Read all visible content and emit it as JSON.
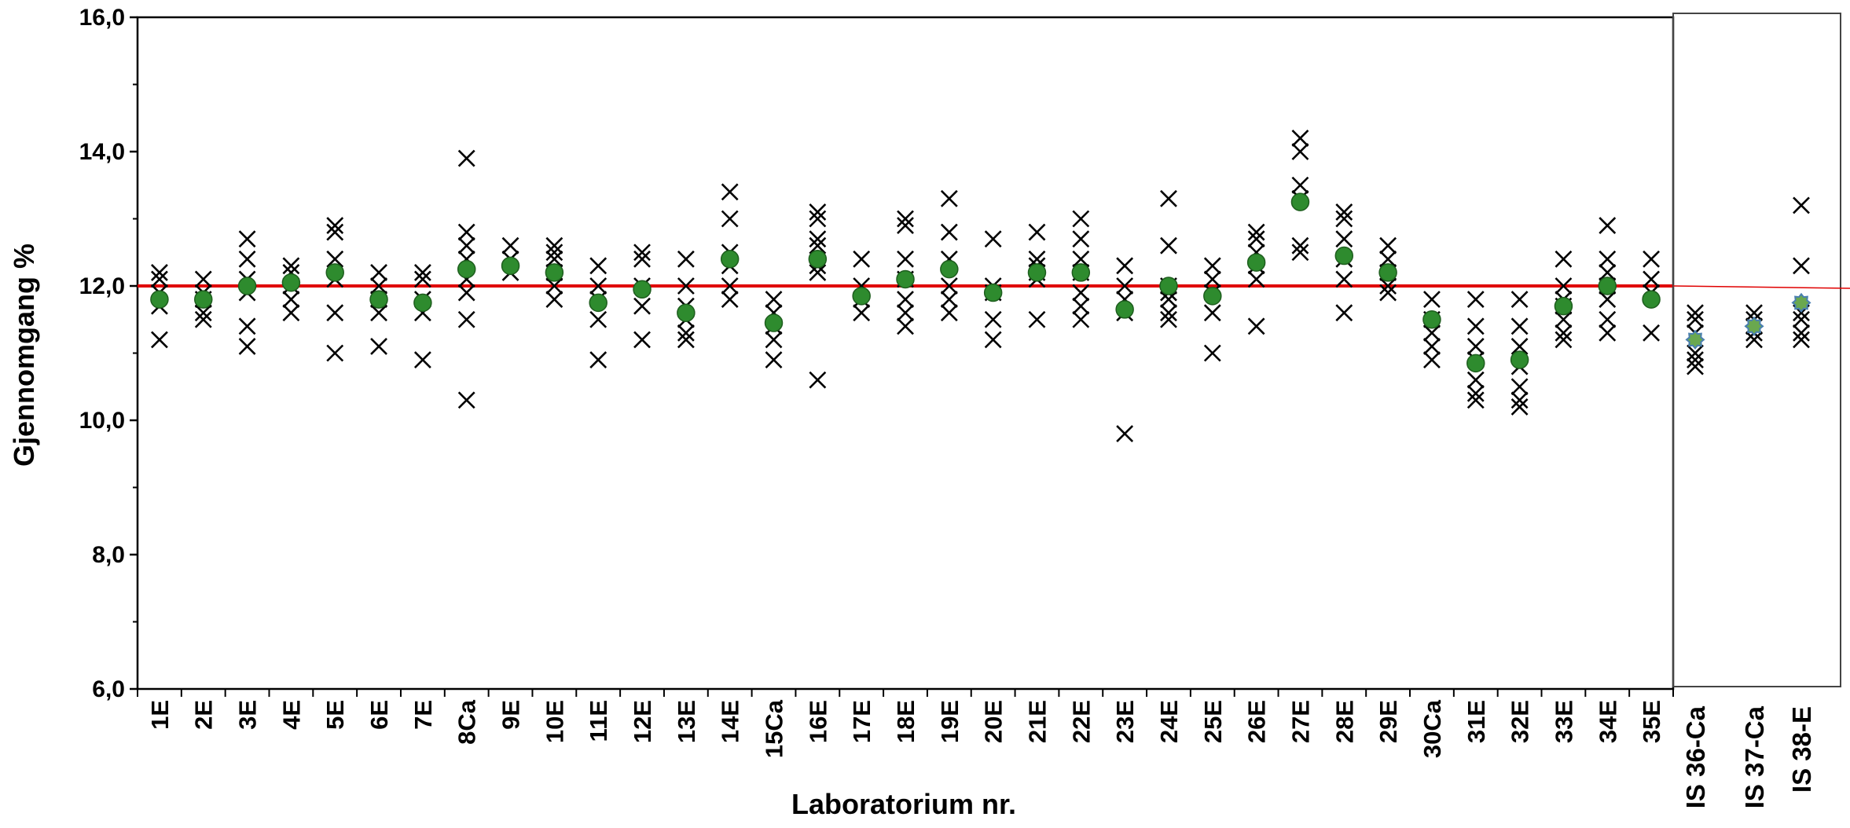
{
  "chart_data": [
    {
      "type": "scatter",
      "xlabel": "Laboratorium nr.",
      "ylabel": "Gjennomgang %",
      "ylim": [
        6,
        16
      ],
      "yticks": [
        "6,0",
        "8,0",
        "10,0",
        "12,0",
        "14,0",
        "16,0"
      ],
      "reference_value": 12.0,
      "reference_color": "#e00000",
      "marker_color": "#000000",
      "mean_color": "#2e8b2e",
      "categories": [
        "1E",
        "2E",
        "3E",
        "4E",
        "5E",
        "6E",
        "7E",
        "8Ca",
        "9E",
        "10E",
        "11E",
        "12E",
        "13E",
        "14E",
        "15Ca",
        "16E",
        "17E",
        "18E",
        "19E",
        "20E",
        "21E",
        "22E",
        "23E",
        "24E",
        "25E",
        "26E",
        "27E",
        "28E",
        "29E",
        "30Ca",
        "31E",
        "32E",
        "33E",
        "34E",
        "35E"
      ],
      "series": [
        {
          "values": [
            [
              12.2,
              12.1,
              11.9,
              11.7,
              11.2
            ],
            [
              12.1,
              11.9,
              11.8,
              11.6,
              11.5
            ],
            [
              12.7,
              12.4,
              12.1,
              11.9,
              11.4,
              11.1
            ],
            [
              12.3,
              12.2,
              12.0,
              11.8,
              11.6
            ],
            [
              12.9,
              12.8,
              12.4,
              12.1,
              11.6,
              11.0
            ],
            [
              12.2,
              12.0,
              11.8,
              11.6,
              11.1
            ],
            [
              12.2,
              12.1,
              11.8,
              11.6,
              10.9
            ],
            [
              13.9,
              12.8,
              12.6,
              12.4,
              12.1,
              11.9,
              11.5,
              10.3
            ],
            [
              12.6,
              12.4,
              12.2
            ],
            [
              12.6,
              12.5,
              12.4,
              12.2,
              12.0,
              11.8
            ],
            [
              12.3,
              12.0,
              11.8,
              11.5,
              10.9
            ],
            [
              12.5,
              12.4,
              12.0,
              11.7,
              11.2
            ],
            [
              12.4,
              12.0,
              11.7,
              11.5,
              11.3,
              11.2
            ],
            [
              13.4,
              13.0,
              12.5,
              12.3,
              12.0,
              11.8
            ],
            [
              11.8,
              11.6,
              11.4,
              11.2,
              10.9
            ],
            [
              13.1,
              13.0,
              12.7,
              12.6,
              12.3,
              12.2,
              10.6
            ],
            [
              12.4,
              12.0,
              11.8,
              11.6
            ],
            [
              13.0,
              12.9,
              12.4,
              12.1,
              11.8,
              11.6,
              11.4
            ],
            [
              13.3,
              12.8,
              12.4,
              12.0,
              11.8,
              11.6
            ],
            [
              12.7,
              12.0,
              11.9,
              11.5,
              11.2
            ],
            [
              12.8,
              12.4,
              12.3,
              12.2,
              12.1,
              11.5
            ],
            [
              13.0,
              12.7,
              12.4,
              12.2,
              11.9,
              11.7,
              11.5
            ],
            [
              12.3,
              12.0,
              11.8,
              11.6,
              9.8
            ],
            [
              13.3,
              12.6,
              12.0,
              11.9,
              11.8,
              11.6,
              11.5
            ],
            [
              12.3,
              12.1,
              11.9,
              11.6,
              11.0
            ],
            [
              12.8,
              12.7,
              12.5,
              12.3,
              12.1,
              11.4
            ],
            [
              14.2,
              14.0,
              13.5,
              13.3,
              12.6,
              12.5
            ],
            [
              13.1,
              13.0,
              12.7,
              12.4,
              12.1,
              11.6
            ],
            [
              12.6,
              12.4,
              12.2,
              12.0,
              11.9
            ],
            [
              11.8,
              11.5,
              11.3,
              11.1,
              10.9
            ],
            [
              11.8,
              11.4,
              11.1,
              10.9,
              10.6,
              10.4,
              10.3
            ],
            [
              11.8,
              11.4,
              11.1,
              10.8,
              10.5,
              10.3,
              10.2
            ],
            [
              12.4,
              12.0,
              11.8,
              11.7,
              11.5,
              11.3,
              11.2
            ],
            [
              12.9,
              12.4,
              12.2,
              12.0,
              11.8,
              11.5,
              11.3
            ],
            [
              12.4,
              12.1,
              11.9,
              11.3
            ]
          ]
        },
        {
          "values": [
            11.8,
            11.8,
            12.0,
            12.05,
            12.2,
            11.8,
            11.75,
            12.25,
            12.3,
            12.2,
            11.75,
            11.95,
            11.6,
            12.4,
            11.45,
            12.4,
            11.85,
            12.1,
            12.25,
            11.9,
            12.2,
            12.2,
            11.65,
            12.0,
            11.85,
            12.35,
            13.25,
            12.45,
            12.2,
            11.5,
            10.85,
            10.9,
            11.7,
            12.0,
            11.8
          ]
        }
      ]
    },
    {
      "type": "scatter",
      "ylim": [
        6,
        16
      ],
      "reference_value": 12.0,
      "reference_color": "#e00000",
      "mean_color": "#6aa84f",
      "mean_edge_color": "#4a7fb0",
      "categories": [
        "IS 36-Ca",
        "IS 37-Ca",
        "IS 38-E"
      ],
      "series": [
        {
          "values": [
            [
              11.6,
              11.5,
              11.3,
              11.0,
              10.9,
              10.8
            ],
            [
              11.6,
              11.5,
              11.4,
              11.3,
              11.2
            ],
            [
              13.2,
              12.3,
              11.6,
              11.5,
              11.3,
              11.2
            ]
          ]
        },
        {
          "values": [
            11.2,
            11.4,
            11.75
          ]
        }
      ]
    }
  ]
}
